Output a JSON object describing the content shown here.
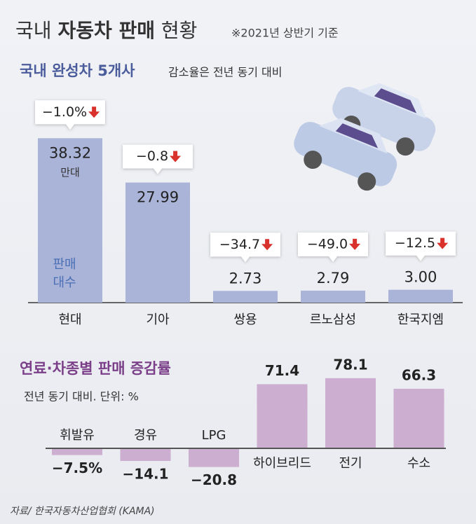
{
  "header": {
    "title": [
      "국내",
      "자동차 판매",
      "현황"
    ],
    "note": "※2021년 상반기 기준"
  },
  "chart_data": [
    {
      "type": "bar",
      "title": "국내 완성차 5개사",
      "subtitle": "감소율은 전년 동기 대비",
      "categories": [
        "현대",
        "기아",
        "쌍용",
        "르노삼성",
        "한국지엠"
      ],
      "values": [
        38.32,
        27.99,
        2.73,
        2.79,
        3.0
      ],
      "value_labels": [
        "38.32",
        "27.99",
        "2.73",
        "2.79",
        "3.00"
      ],
      "unit_label": "만대",
      "axis_label": [
        "판매",
        "대수"
      ],
      "changes": [
        -1.0,
        -0.8,
        -34.7,
        -49.0,
        -12.5
      ],
      "change_labels": [
        "−1.0%",
        "−0.8",
        "−34.7",
        "−49.0",
        "−12.5"
      ],
      "color": "#aab3d8",
      "ylim": [
        0,
        40
      ]
    },
    {
      "type": "bar",
      "title": "연료·차종별 판매 증감률",
      "subtitle": "전년 동기 대비. 단위: %",
      "categories": [
        "휘발유",
        "경유",
        "LPG",
        "하이브리드",
        "전기",
        "수소"
      ],
      "values": [
        -7.5,
        -14.1,
        -20.8,
        71.4,
        78.1,
        66.3
      ],
      "value_labels": [
        "−7.5%",
        "−14.1",
        "−20.8",
        "71.4",
        "78.1",
        "66.3"
      ],
      "color": "#cbaed0",
      "ylim": [
        -25,
        85
      ]
    }
  ],
  "source": "자료/ 한국자동차산업협회 (KAMA)"
}
